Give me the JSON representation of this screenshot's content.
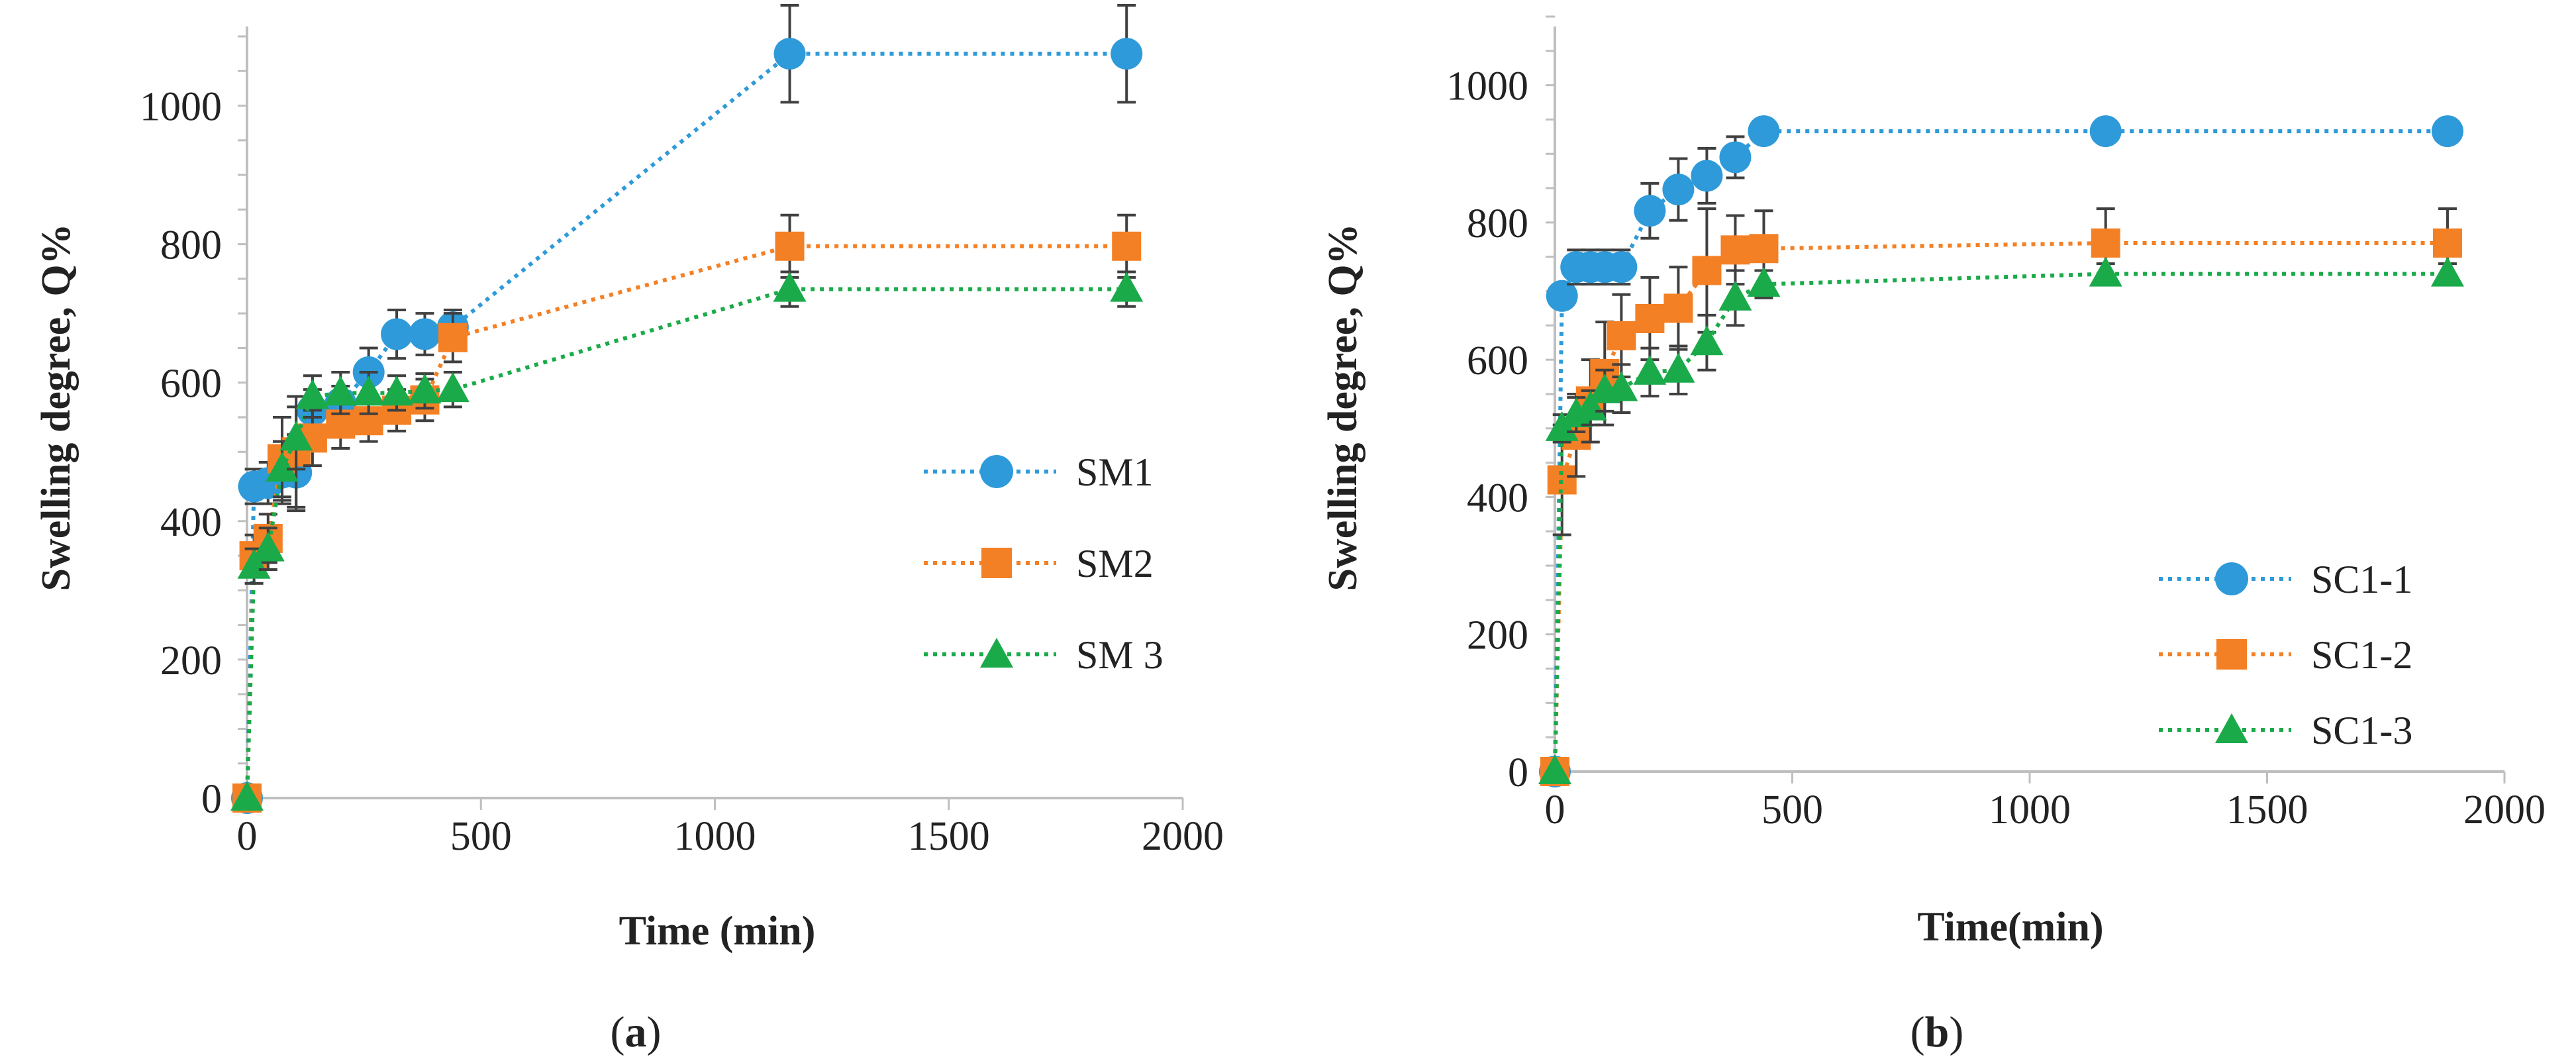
{
  "figure": {
    "colors": {
      "series_1": "#2E9AD9",
      "series_2": "#F48025",
      "series_3": "#1AAA4A",
      "axis": "#BFBFBF",
      "errorbar": "#404040"
    }
  },
  "chart_data": [
    {
      "type": "line",
      "panel": "a",
      "panel_label": {
        "open": "(",
        "letter": "a",
        "close": ")"
      },
      "xlabel": "Time (min)",
      "ylabel": "Swelling degree, Q%",
      "xlim": [
        0,
        2000
      ],
      "ylim": [
        0,
        1100
      ],
      "xticks": [
        0,
        500,
        1000,
        1500,
        2000
      ],
      "yticks": [
        0,
        200,
        400,
        600,
        800,
        1000
      ],
      "grid": false,
      "legend_position": "right-center",
      "series": [
        {
          "name": "SM1",
          "marker": "circle",
          "color": "#2E9AD9",
          "x": [
            0,
            15,
            45,
            75,
            105,
            140,
            200,
            260,
            320,
            380,
            440,
            1160,
            1880
          ],
          "y": [
            0,
            450,
            455,
            470,
            470,
            560,
            570,
            615,
            670,
            670,
            680,
            1075,
            1075
          ],
          "err": [
            0,
            25,
            30,
            45,
            55,
            30,
            25,
            35,
            35,
            30,
            25,
            70,
            70
          ]
        },
        {
          "name": "SM2",
          "marker": "square",
          "color": "#F48025",
          "x": [
            0,
            15,
            45,
            75,
            105,
            140,
            200,
            260,
            320,
            380,
            440,
            1160,
            1880
          ],
          "y": [
            0,
            350,
            375,
            490,
            500,
            520,
            540,
            545,
            560,
            575,
            665,
            797,
            797
          ],
          "err": [
            0,
            30,
            35,
            60,
            80,
            40,
            35,
            30,
            30,
            30,
            35,
            45,
            45
          ]
        },
        {
          "name": "SM 3",
          "marker": "triangle",
          "color": "#1AAA4A",
          "x": [
            0,
            15,
            45,
            75,
            105,
            140,
            200,
            260,
            320,
            380,
            440,
            1160,
            1880
          ],
          "y": [
            0,
            335,
            360,
            475,
            520,
            580,
            585,
            585,
            585,
            588,
            590,
            735,
            735
          ],
          "err": [
            0,
            25,
            30,
            40,
            45,
            30,
            30,
            30,
            25,
            25,
            25,
            25,
            25
          ]
        }
      ]
    },
    {
      "type": "line",
      "panel": "b",
      "panel_label": {
        "open": "(",
        "letter": "b",
        "close": ")"
      },
      "xlabel": "Time(min)",
      "ylabel": "Swelling degree, Q%",
      "xlim": [
        0,
        2000
      ],
      "ylim": [
        0,
        1100
      ],
      "xticks": [
        0,
        500,
        1000,
        1500,
        2000
      ],
      "yticks": [
        0,
        200,
        400,
        600,
        800,
        1000
      ],
      "grid": false,
      "legend_position": "bottom-right",
      "series": [
        {
          "name": "SC1-1",
          "marker": "circle",
          "color": "#2E9AD9",
          "x": [
            0,
            15,
            45,
            75,
            105,
            140,
            200,
            260,
            320,
            380,
            440,
            1160,
            1880
          ],
          "y": [
            0,
            693,
            735,
            735,
            735,
            735,
            817,
            848,
            868,
            895,
            933,
            933,
            933
          ],
          "err": [
            0,
            15,
            25,
            25,
            25,
            25,
            40,
            45,
            40,
            30,
            10,
            10,
            10
          ]
        },
        {
          "name": "SC1-2",
          "marker": "square",
          "color": "#F48025",
          "x": [
            0,
            15,
            45,
            75,
            105,
            140,
            200,
            260,
            320,
            380,
            440,
            1160,
            1880
          ],
          "y": [
            0,
            425,
            490,
            540,
            580,
            635,
            660,
            675,
            730,
            760,
            762,
            770,
            770
          ],
          "err": [
            0,
            80,
            60,
            60,
            75,
            60,
            60,
            60,
            90,
            50,
            55,
            50,
            50
          ]
        },
        {
          "name": "SC1-3",
          "marker": "triangle",
          "color": "#1AAA4A",
          "x": [
            0,
            15,
            45,
            75,
            105,
            140,
            200,
            260,
            320,
            380,
            440,
            1160,
            1880
          ],
          "y": [
            0,
            500,
            520,
            530,
            555,
            558,
            582,
            585,
            625,
            690,
            710,
            725,
            725
          ],
          "err": [
            0,
            20,
            25,
            25,
            30,
            35,
            35,
            35,
            40,
            40,
            20,
            15,
            15
          ]
        }
      ]
    }
  ]
}
